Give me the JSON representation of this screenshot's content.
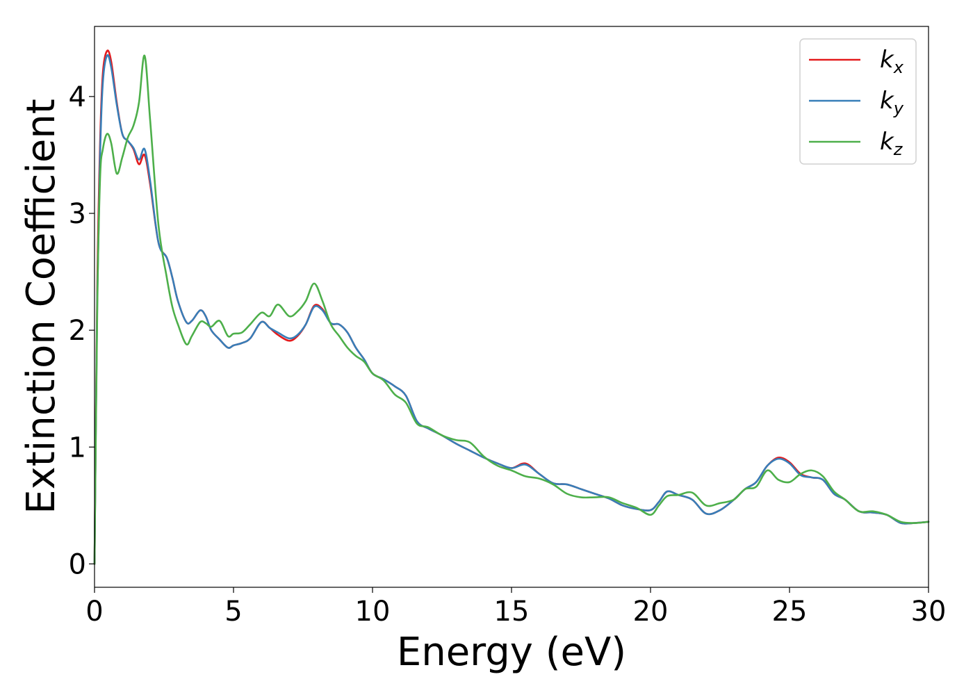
{
  "chart_data": {
    "type": "line",
    "xlabel": "Energy (eV)",
    "ylabel": "Extinction Coefficient",
    "xlim": [
      0,
      30
    ],
    "ylim": [
      -0.2,
      4.6
    ],
    "xticks": [
      0,
      5,
      10,
      15,
      20,
      25,
      30
    ],
    "yticks": [
      0,
      1,
      2,
      3,
      4
    ],
    "xtick_labels": [
      "0",
      "5",
      "10",
      "15",
      "20",
      "25",
      "30"
    ],
    "ytick_labels": [
      "0",
      "1",
      "2",
      "3",
      "4"
    ],
    "grid": false,
    "legend_position": "top-right",
    "x": [
      0,
      0.1,
      0.2,
      0.3,
      0.45,
      0.6,
      0.8,
      1.0,
      1.2,
      1.4,
      1.6,
      1.8,
      2.0,
      2.3,
      2.6,
      2.8,
      3.0,
      3.3,
      3.5,
      3.8,
      4.0,
      4.2,
      4.5,
      4.8,
      5.0,
      5.3,
      5.6,
      6.0,
      6.3,
      6.6,
      7.0,
      7.3,
      7.6,
      7.9,
      8.2,
      8.5,
      8.8,
      9.1,
      9.4,
      9.7,
      10.0,
      10.4,
      10.8,
      11.2,
      11.6,
      12.0,
      12.5,
      13.0,
      13.5,
      14.0,
      14.5,
      15.0,
      15.5,
      16.0,
      16.5,
      17.0,
      17.5,
      18.0,
      18.5,
      19.0,
      19.5,
      20.0,
      20.3,
      20.6,
      21.0,
      21.5,
      22.0,
      22.5,
      23.0,
      23.4,
      23.8,
      24.2,
      24.6,
      25.0,
      25.4,
      25.8,
      26.2,
      26.6,
      27.0,
      27.5,
      28.0,
      28.5,
      29.0,
      29.5,
      30.0
    ],
    "series": [
      {
        "name": "k",
        "subscript": "x",
        "color": "#e41a1c",
        "values": [
          0.0,
          2.4,
          3.6,
          4.2,
          4.39,
          4.3,
          3.95,
          3.68,
          3.62,
          3.55,
          3.42,
          3.5,
          3.25,
          2.75,
          2.62,
          2.45,
          2.25,
          2.07,
          2.08,
          2.17,
          2.12,
          2.0,
          1.92,
          1.85,
          1.87,
          1.89,
          1.93,
          2.07,
          2.02,
          1.96,
          1.91,
          1.95,
          2.05,
          2.21,
          2.18,
          2.06,
          2.05,
          1.98,
          1.85,
          1.75,
          1.63,
          1.58,
          1.52,
          1.44,
          1.22,
          1.16,
          1.1,
          1.03,
          0.97,
          0.91,
          0.86,
          0.82,
          0.86,
          0.77,
          0.69,
          0.68,
          0.64,
          0.6,
          0.56,
          0.5,
          0.47,
          0.46,
          0.53,
          0.62,
          0.59,
          0.55,
          0.43,
          0.46,
          0.55,
          0.64,
          0.7,
          0.84,
          0.91,
          0.87,
          0.77,
          0.74,
          0.72,
          0.6,
          0.55,
          0.45,
          0.44,
          0.42,
          0.35,
          0.35,
          0.36
        ]
      },
      {
        "name": "k",
        "subscript": "y",
        "color": "#377eb8",
        "values": [
          0.0,
          2.3,
          3.5,
          4.12,
          4.35,
          4.25,
          3.93,
          3.68,
          3.62,
          3.56,
          3.46,
          3.55,
          3.28,
          2.75,
          2.62,
          2.45,
          2.25,
          2.07,
          2.08,
          2.17,
          2.12,
          2.0,
          1.92,
          1.85,
          1.87,
          1.89,
          1.93,
          2.07,
          2.02,
          1.98,
          1.93,
          1.96,
          2.05,
          2.2,
          2.17,
          2.06,
          2.05,
          1.98,
          1.85,
          1.75,
          1.63,
          1.58,
          1.52,
          1.44,
          1.22,
          1.16,
          1.1,
          1.03,
          0.97,
          0.91,
          0.86,
          0.82,
          0.85,
          0.77,
          0.69,
          0.68,
          0.64,
          0.6,
          0.56,
          0.5,
          0.47,
          0.46,
          0.53,
          0.62,
          0.59,
          0.55,
          0.43,
          0.46,
          0.55,
          0.64,
          0.7,
          0.84,
          0.9,
          0.86,
          0.76,
          0.74,
          0.72,
          0.6,
          0.55,
          0.45,
          0.44,
          0.42,
          0.35,
          0.35,
          0.36
        ]
      },
      {
        "name": "k",
        "subscript": "z",
        "color": "#4daf4a",
        "values": [
          0.0,
          2.2,
          3.3,
          3.55,
          3.68,
          3.6,
          3.34,
          3.48,
          3.65,
          3.75,
          3.95,
          4.35,
          3.8,
          2.9,
          2.45,
          2.2,
          2.05,
          1.88,
          1.95,
          2.07,
          2.06,
          2.03,
          2.08,
          1.95,
          1.97,
          1.98,
          2.05,
          2.15,
          2.12,
          2.22,
          2.12,
          2.16,
          2.25,
          2.4,
          2.25,
          2.05,
          1.95,
          1.85,
          1.78,
          1.73,
          1.63,
          1.57,
          1.45,
          1.38,
          1.2,
          1.17,
          1.1,
          1.06,
          1.04,
          0.92,
          0.84,
          0.8,
          0.75,
          0.73,
          0.68,
          0.6,
          0.57,
          0.57,
          0.57,
          0.52,
          0.48,
          0.42,
          0.5,
          0.58,
          0.59,
          0.61,
          0.5,
          0.52,
          0.55,
          0.64,
          0.66,
          0.8,
          0.72,
          0.7,
          0.77,
          0.8,
          0.75,
          0.62,
          0.55,
          0.45,
          0.45,
          0.42,
          0.36,
          0.35,
          0.36
        ]
      }
    ]
  }
}
